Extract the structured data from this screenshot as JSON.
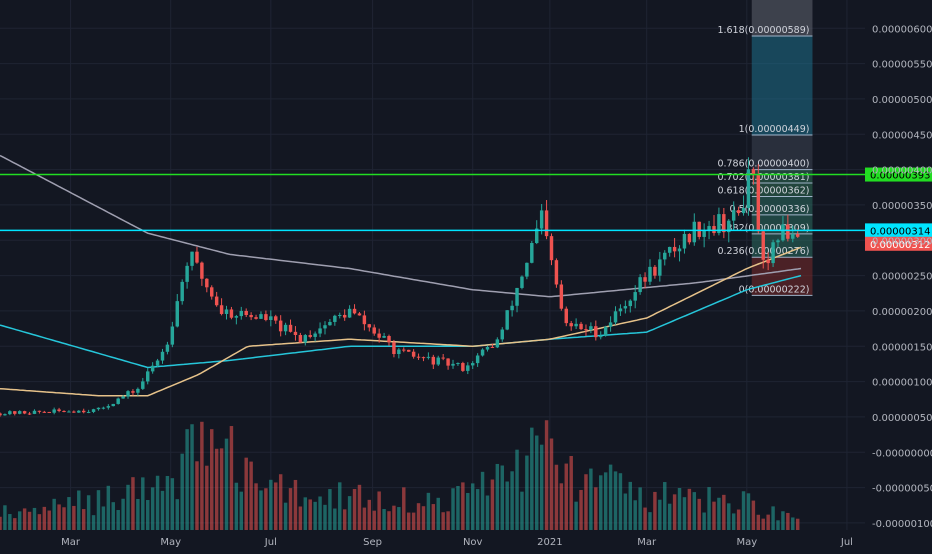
{
  "chart_data": {
    "type": "candlestick",
    "title": "",
    "xlabel": "",
    "ylabel": "",
    "x_ticks": [
      "Mar",
      "May",
      "Jul",
      "Sep",
      "Nov",
      "2021",
      "Mar",
      "May",
      "Jul"
    ],
    "y_ticks": [
      "0.00000600",
      "0.00000550",
      "0.00000500",
      "0.00000450",
      "0.00000400",
      "0.00000350",
      "0.00000300",
      "0.00000250",
      "0.00000200",
      "0.00000150",
      "0.00000100",
      "0.00000050",
      "-0.00000000",
      "-0.00000050",
      "-0.00000100"
    ],
    "ylim": [
      -1.1e-06,
      6.4e-06
    ],
    "grid": true,
    "price_anchors": {
      "dates": [
        "2020-02-01",
        "2020-04-01",
        "2020-04-25",
        "2020-05-12",
        "2020-05-26",
        "2020-06-15",
        "2020-07-12",
        "2020-08-01",
        "2020-09-01",
        "2020-10-01",
        "2020-11-10",
        "2020-12-01",
        "2020-12-27",
        "2021-01-10",
        "2021-02-01",
        "2021-03-01",
        "2021-04-01",
        "2021-04-25",
        "2021-05-04",
        "2021-05-12",
        "2021-05-20",
        "2021-06-03"
      ],
      "close": [
        5.5e-07,
        6e-07,
        9e-07,
        1.5e-06,
        2.8e-06,
        2e-06,
        1.9e-06,
        1.6e-06,
        2e-06,
        1.4e-06,
        1.2e-06,
        1.6e-06,
        3.3e-06,
        1.8e-06,
        1.7e-06,
        2.5e-06,
        3.2e-06,
        3.3e-06,
        4e-06,
        2.4e-06,
        3.1e-06,
        3.14e-06
      ]
    },
    "moving_averages": [
      {
        "color": "#9f9fb0",
        "dates": [
          "2020-02-01",
          "2020-05-01",
          "2020-06-20",
          "2020-09-01",
          "2020-11-15",
          "2021-01-01",
          "2021-04-01",
          "2021-06-03"
        ],
        "values": [
          4.2e-06,
          3.1e-06,
          2.8e-06,
          2.6e-06,
          2.3e-06,
          2.2e-06,
          2.4e-06,
          2.6e-06
        ]
      },
      {
        "color": "#26c6da",
        "dates": [
          "2020-02-01",
          "2020-05-01",
          "2020-06-20",
          "2020-09-01",
          "2020-11-15",
          "2021-01-01",
          "2021-03-01",
          "2021-05-01",
          "2021-06-03"
        ],
        "values": [
          1.8e-06,
          1.2e-06,
          1.3e-06,
          1.5e-06,
          1.5e-06,
          1.6e-06,
          1.7e-06,
          2.3e-06,
          2.5e-06
        ]
      },
      {
        "color": "#e6c28a",
        "dates": [
          "2020-02-01",
          "2020-04-01",
          "2020-05-01",
          "2020-06-01",
          "2020-07-01",
          "2020-09-01",
          "2020-11-15",
          "2021-01-01",
          "2021-03-01",
          "2021-05-01",
          "2021-06-03"
        ],
        "values": [
          9e-07,
          8e-07,
          8e-07,
          1.1e-06,
          1.5e-06,
          1.6e-06,
          1.5e-06,
          1.6e-06,
          1.9e-06,
          2.6e-06,
          2.9e-06
        ]
      }
    ],
    "volume_sample": {
      "dates": [
        "2020-02-15",
        "2020-05-15",
        "2020-06-01",
        "2020-07-15",
        "2020-09-15",
        "2020-11-01",
        "2020-12-27",
        "2021-01-15",
        "2021-03-01",
        "2021-05-01",
        "2021-06-01"
      ],
      "values": [
        0.15,
        0.4,
        0.9,
        0.35,
        0.3,
        0.25,
        0.75,
        0.5,
        0.3,
        0.25,
        0.1
      ]
    },
    "horizontal_lines": [
      {
        "value": 3.93e-06,
        "color": "#22dd22",
        "label": "0.00000393"
      },
      {
        "value": 3.14e-06,
        "color": "#00e5ff",
        "label": "0.00000314"
      }
    ],
    "last_price_label": {
      "value": 3.12e-06,
      "color": "#ef5350",
      "label": "0.00000312"
    },
    "fibonacci": {
      "date_start": "2021-05-04",
      "date_end": "2021-06-10",
      "levels": [
        {
          "label": "1.618(0.00000589)",
          "value": 5.89e-06
        },
        {
          "label": "1(0.00000449)",
          "value": 4.49e-06
        },
        {
          "label": "0.786(0.00000400)",
          "value": 4e-06
        },
        {
          "label": "0.702(0.00000381)",
          "value": 3.81e-06
        },
        {
          "label": "0.618(0.00000362)",
          "value": 3.62e-06
        },
        {
          "label": "0.5(0.00000336)",
          "value": 3.36e-06
        },
        {
          "label": "0.382(0.00000309)",
          "value": 3.09e-06
        },
        {
          "label": "0.236(0.00000276)",
          "value": 2.76e-06
        },
        {
          "label": "0(0.00000222)",
          "value": 2.22e-06
        }
      ]
    }
  },
  "colors": {
    "background": "#131722",
    "grid": "#1f2433",
    "up": "#26a69a",
    "down": "#ef5350",
    "axis_text": "#b2b5be"
  }
}
